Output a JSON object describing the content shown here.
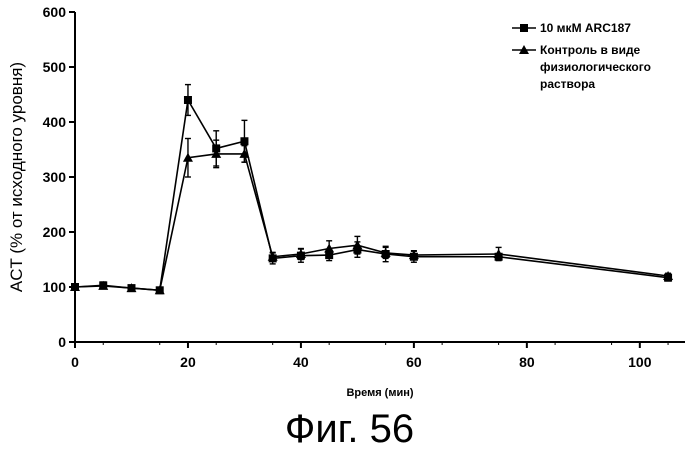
{
  "caption": "Фиг. 56",
  "chart_data": {
    "type": "line",
    "title": "",
    "xlabel": "Время (мин)",
    "ylabel": "ACT (% от исходного уровня)",
    "xlim": [
      0,
      108
    ],
    "ylim": [
      0,
      600
    ],
    "xticks": [
      0,
      20,
      40,
      60,
      80,
      100
    ],
    "yticks": [
      0,
      100,
      200,
      300,
      400,
      500,
      600
    ],
    "grid": false,
    "legend_position": "top-right",
    "series": [
      {
        "name": "10 мкМ ARC187",
        "marker": "square",
        "x": [
          0,
          5,
          10,
          15,
          20,
          25,
          30,
          35,
          40,
          45,
          50,
          55,
          60,
          75,
          105
        ],
        "y": [
          100,
          103,
          98,
          94,
          440,
          352,
          365,
          152,
          157,
          158,
          168,
          160,
          155,
          155,
          117
        ],
        "err": [
          0,
          6,
          4,
          3,
          28,
          32,
          38,
          10,
          12,
          10,
          14,
          14,
          10,
          0,
          6
        ]
      },
      {
        "name": "Контроль в виде физиологического раствора",
        "legend_lines": [
          "Контроль в виде",
          "физиологического",
          "раствора"
        ],
        "marker": "triangle",
        "x": [
          0,
          5,
          10,
          15,
          20,
          25,
          30,
          35,
          40,
          45,
          50,
          55,
          60,
          75,
          105
        ],
        "y": [
          100,
          102,
          98,
          94,
          335,
          342,
          342,
          155,
          160,
          170,
          176,
          162,
          158,
          160,
          120
        ],
        "err": [
          0,
          4,
          3,
          2,
          35,
          25,
          15,
          8,
          10,
          14,
          16,
          10,
          8,
          12,
          5
        ]
      }
    ]
  }
}
